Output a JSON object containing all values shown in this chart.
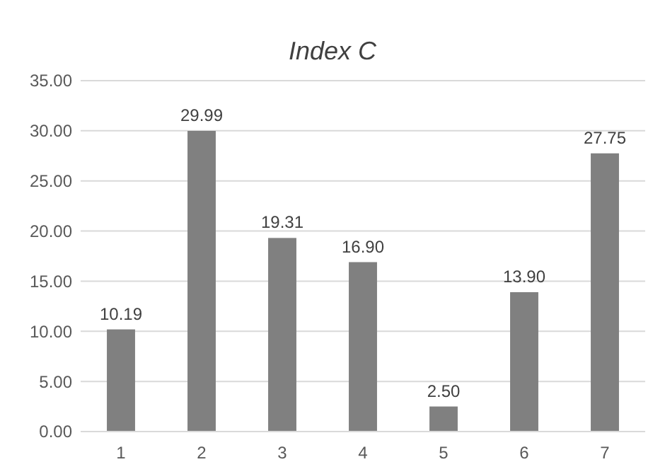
{
  "chart_data": {
    "type": "bar",
    "title": "Index C",
    "categories": [
      "1",
      "2",
      "3",
      "4",
      "5",
      "6",
      "7"
    ],
    "values": [
      10.19,
      29.99,
      19.31,
      16.9,
      2.5,
      13.9,
      27.75
    ],
    "value_labels": [
      "10.19",
      "29.99",
      "19.31",
      "16.90",
      "2.50",
      "13.90",
      "27.75"
    ],
    "color": "#808080",
    "ylim": [
      0,
      35
    ],
    "yticks": [
      {
        "value": 0,
        "label": "0.00"
      },
      {
        "value": 5,
        "label": "5.00"
      },
      {
        "value": 10,
        "label": "10.00"
      },
      {
        "value": 15,
        "label": "15.00"
      },
      {
        "value": 20,
        "label": "20.00"
      },
      {
        "value": 25,
        "label": "25.00"
      },
      {
        "value": 30,
        "label": "30.00"
      },
      {
        "value": 35,
        "label": "35.00"
      }
    ],
    "grid": "y"
  }
}
